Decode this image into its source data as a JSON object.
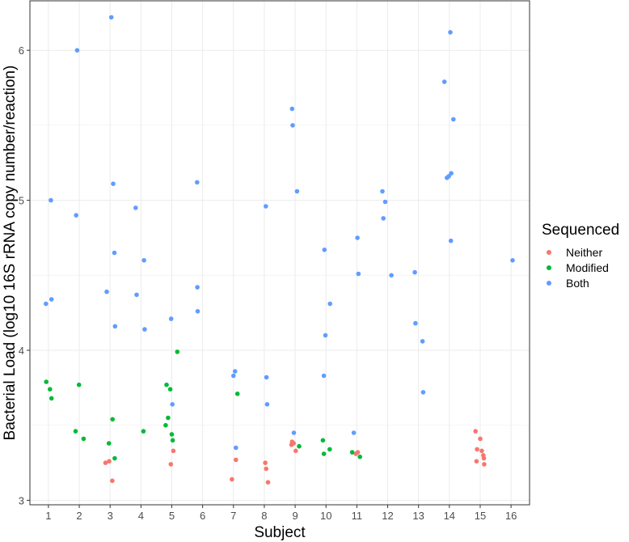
{
  "chart_data": {
    "type": "scatter",
    "xlabel": "Subject",
    "ylabel": "Bacterial Load (log10 16S rRNA copy number/reaction)",
    "x_ticks": [
      1,
      2,
      3,
      4,
      5,
      6,
      7,
      8,
      9,
      10,
      11,
      12,
      13,
      14,
      15,
      16
    ],
    "y_ticks": [
      3,
      4,
      5,
      6
    ],
    "xlim": [
      0.4,
      16.6
    ],
    "ylim": [
      2.97,
      6.33
    ],
    "grid": true,
    "legend": {
      "title": "Sequenced",
      "position": "right"
    },
    "series": [
      {
        "name": "Neither",
        "color": "#F8766D",
        "points": [
          [
            2.85,
            3.25
          ],
          [
            2.97,
            3.26
          ],
          [
            3.07,
            3.13
          ],
          [
            4.97,
            3.24
          ],
          [
            5.05,
            3.33
          ],
          [
            6.95,
            3.14
          ],
          [
            7.08,
            3.27
          ],
          [
            8.03,
            3.25
          ],
          [
            8.06,
            3.21
          ],
          [
            8.12,
            3.12
          ],
          [
            8.88,
            3.37
          ],
          [
            8.9,
            3.39
          ],
          [
            8.95,
            3.38
          ],
          [
            9.02,
            3.33
          ],
          [
            10.97,
            3.31
          ],
          [
            11.03,
            3.32
          ],
          [
            14.85,
            3.46
          ],
          [
            14.9,
            3.34
          ],
          [
            14.88,
            3.26
          ],
          [
            15.0,
            3.41
          ],
          [
            15.05,
            3.33
          ],
          [
            15.1,
            3.3
          ],
          [
            15.12,
            3.28
          ],
          [
            15.13,
            3.24
          ]
        ]
      },
      {
        "name": "Modified",
        "color": "#00BA38",
        "points": [
          [
            0.93,
            3.79
          ],
          [
            1.05,
            3.74
          ],
          [
            1.1,
            3.68
          ],
          [
            1.88,
            3.46
          ],
          [
            1.99,
            3.77
          ],
          [
            2.14,
            3.41
          ],
          [
            2.96,
            3.38
          ],
          [
            3.08,
            3.54
          ],
          [
            3.15,
            3.28
          ],
          [
            4.08,
            3.46
          ],
          [
            4.8,
            3.5
          ],
          [
            4.83,
            3.77
          ],
          [
            4.88,
            3.55
          ],
          [
            4.95,
            3.74
          ],
          [
            5.0,
            3.44
          ],
          [
            5.03,
            3.4
          ],
          [
            5.18,
            3.99
          ],
          [
            7.13,
            3.71
          ],
          [
            9.13,
            3.36
          ],
          [
            9.9,
            3.4
          ],
          [
            9.93,
            3.31
          ],
          [
            10.12,
            3.34
          ],
          [
            10.85,
            3.32
          ],
          [
            11.1,
            3.29
          ]
        ]
      },
      {
        "name": "Both",
        "color": "#619CFF",
        "points": [
          [
            0.92,
            4.31
          ],
          [
            1.08,
            5.0
          ],
          [
            1.1,
            4.34
          ],
          [
            1.9,
            4.9
          ],
          [
            1.93,
            6.0
          ],
          [
            2.89,
            4.39
          ],
          [
            3.04,
            6.22
          ],
          [
            3.1,
            5.11
          ],
          [
            3.14,
            4.65
          ],
          [
            3.16,
            4.16
          ],
          [
            3.83,
            4.95
          ],
          [
            3.86,
            4.37
          ],
          [
            4.1,
            4.6
          ],
          [
            4.12,
            4.14
          ],
          [
            4.98,
            4.21
          ],
          [
            5.02,
            3.64
          ],
          [
            5.82,
            5.12
          ],
          [
            5.83,
            4.42
          ],
          [
            5.84,
            4.26
          ],
          [
            7.0,
            3.83
          ],
          [
            7.05,
            3.86
          ],
          [
            7.08,
            3.35
          ],
          [
            8.05,
            4.96
          ],
          [
            8.07,
            3.82
          ],
          [
            8.09,
            3.64
          ],
          [
            8.9,
            5.61
          ],
          [
            8.92,
            5.5
          ],
          [
            8.96,
            3.45
          ],
          [
            9.06,
            5.06
          ],
          [
            9.95,
            4.67
          ],
          [
            9.93,
            3.83
          ],
          [
            9.98,
            4.1
          ],
          [
            10.13,
            4.31
          ],
          [
            10.9,
            3.45
          ],
          [
            11.02,
            4.75
          ],
          [
            11.05,
            4.51
          ],
          [
            11.83,
            5.06
          ],
          [
            11.86,
            4.88
          ],
          [
            11.92,
            4.99
          ],
          [
            12.12,
            4.5
          ],
          [
            12.88,
            4.52
          ],
          [
            12.9,
            4.18
          ],
          [
            13.13,
            4.06
          ],
          [
            13.15,
            3.72
          ],
          [
            13.84,
            5.79
          ],
          [
            13.92,
            5.15
          ],
          [
            13.98,
            5.16
          ],
          [
            14.03,
            6.12
          ],
          [
            14.06,
            5.18
          ],
          [
            14.05,
            4.73
          ],
          [
            14.13,
            5.54
          ],
          [
            16.05,
            4.6
          ]
        ]
      }
    ]
  }
}
